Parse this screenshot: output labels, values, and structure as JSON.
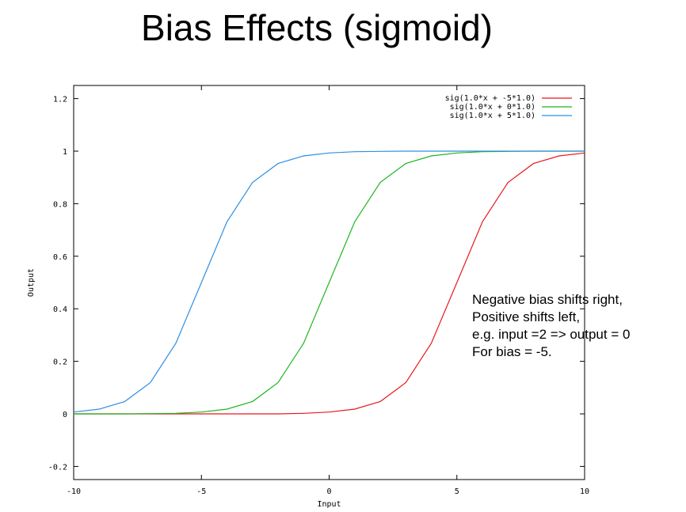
{
  "slide": {
    "title": "Bias Effects (sigmoid)"
  },
  "chart_data": {
    "type": "line",
    "xlabel": "Input",
    "ylabel": "Output",
    "xlim": [
      -10,
      10
    ],
    "ylim": [
      -0.25,
      1.25
    ],
    "xticks": [
      -10,
      -5,
      0,
      5,
      10
    ],
    "xtick_labels": [
      "-10",
      "-5",
      "0",
      "5",
      "10"
    ],
    "yticks": [
      -0.2,
      0,
      0.2,
      0.4,
      0.6,
      0.8,
      1,
      1.2
    ],
    "ytick_labels": [
      "-0.2",
      "0",
      "0.2",
      "0.4",
      "0.6",
      "0.8",
      "1",
      "1.2"
    ],
    "grid": false,
    "legend_position": "top-right",
    "x": [
      -10,
      -9,
      -8,
      -7,
      -6,
      -5,
      -4,
      -3,
      -2,
      -1,
      0,
      1,
      2,
      3,
      4,
      5,
      6,
      7,
      8,
      9,
      10
    ],
    "series": [
      {
        "name": "sig(1.0*x + -5*1.0)",
        "color": "#e8191e",
        "values": [
          0.0,
          0.0,
          0.0,
          0.0,
          0.0,
          0.0,
          0.0,
          0.0,
          0.0,
          0.002,
          0.007,
          0.018,
          0.047,
          0.119,
          0.269,
          0.5,
          0.731,
          0.881,
          0.953,
          0.982,
          0.993
        ]
      },
      {
        "name": "sig(1.0*x +  0*1.0)",
        "color": "#1fb51f",
        "values": [
          0.0,
          0.0,
          0.0,
          0.001,
          0.002,
          0.007,
          0.018,
          0.047,
          0.119,
          0.269,
          0.5,
          0.731,
          0.881,
          0.953,
          0.982,
          0.993,
          0.998,
          0.999,
          1.0,
          1.0,
          1.0
        ]
      },
      {
        "name": "sig(1.0*x +  5*1.0)",
        "color": "#2f8fe0",
        "values": [
          0.007,
          0.018,
          0.047,
          0.119,
          0.269,
          0.5,
          0.731,
          0.881,
          0.953,
          0.982,
          0.993,
          0.998,
          0.999,
          1.0,
          1.0,
          1.0,
          1.0,
          1.0,
          1.0,
          1.0,
          1.0
        ]
      }
    ]
  },
  "annotation": {
    "lines": [
      "Negative bias shifts right,",
      "Positive shifts left,",
      "e.g. input =2 => output = 0",
      "For bias = -5."
    ]
  }
}
